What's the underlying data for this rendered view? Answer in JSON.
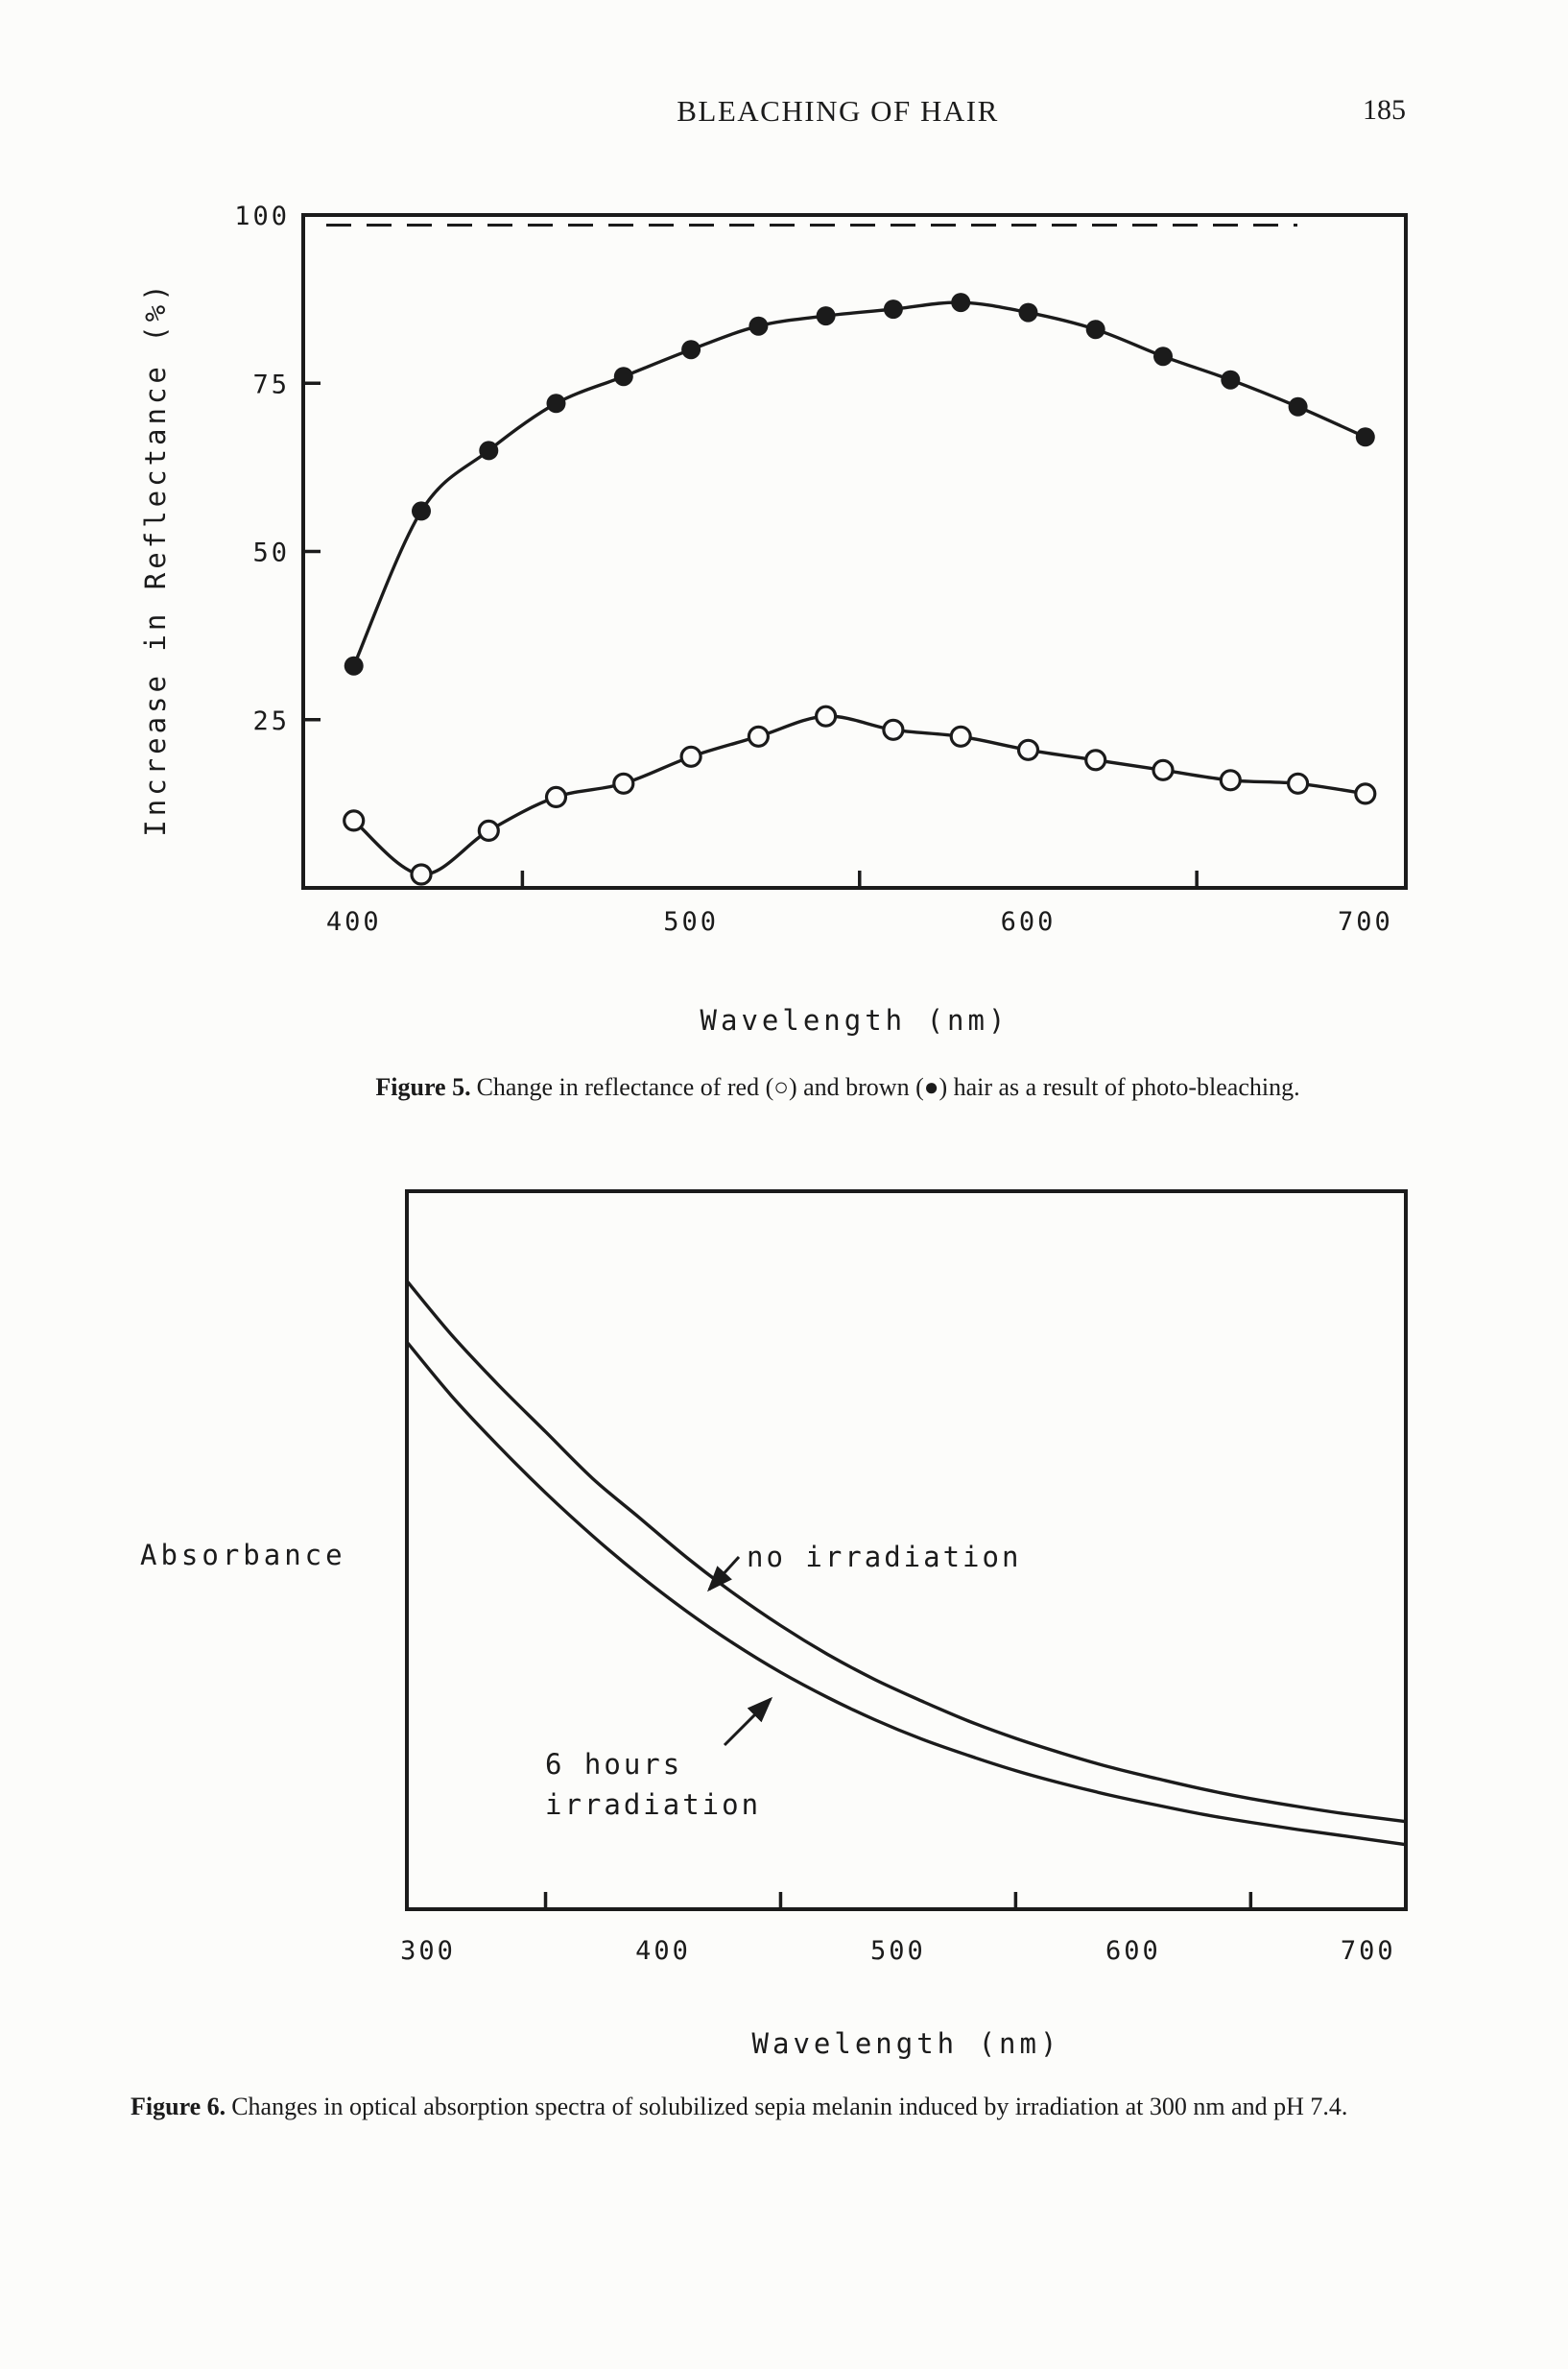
{
  "header": {
    "title": "BLEACHING OF HAIR",
    "page_number": "185"
  },
  "figure5": {
    "caption_label": "Figure 5.",
    "caption_text": "Change in reflectance of red (○) and brown (●) hair as a result of photo-bleaching."
  },
  "figure6": {
    "caption_label": "Figure 6.",
    "caption_text": "Changes in optical absorption spectra of solubilized sepia melanin induced by irradiation at 300 nm and pH 7.4."
  },
  "colors": {
    "ink": "#1b1b1b",
    "paper": "#fcfcfa"
  },
  "chart_data": [
    {
      "type": "scatter",
      "title": "",
      "xlabel": "Wavelength (nm)",
      "ylabel": "Increase in Reflectance (%)",
      "xlim": [
        385,
        712
      ],
      "ylim": [
        0,
        100
      ],
      "x_ticks": [
        400,
        500,
        600,
        700
      ],
      "x_minor_ticks": [
        450,
        550,
        650
      ],
      "y_ticks": [
        25,
        50,
        75,
        100
      ],
      "reference_line_y": 98.5,
      "grid": false,
      "legend": "in caption",
      "series": [
        {
          "name": "brown hair",
          "marker": "filled-circle",
          "x": [
            400,
            420,
            440,
            460,
            480,
            500,
            520,
            540,
            560,
            580,
            600,
            620,
            640,
            660,
            680,
            700
          ],
          "y": [
            33,
            56,
            65,
            72,
            76,
            80,
            83.5,
            85,
            86,
            87,
            85.5,
            83,
            79,
            75.5,
            71.5,
            67
          ]
        },
        {
          "name": "red hair",
          "marker": "open-circle",
          "x": [
            400,
            420,
            440,
            460,
            480,
            500,
            520,
            540,
            560,
            580,
            600,
            620,
            640,
            660,
            680,
            700
          ],
          "y": [
            10,
            2,
            8.5,
            13.5,
            15.5,
            19.5,
            22.5,
            25.5,
            23.5,
            22.5,
            20.5,
            19,
            17.5,
            16,
            15.5,
            14
          ]
        }
      ]
    },
    {
      "type": "line",
      "title": "",
      "xlabel": "Wavelength (nm)",
      "ylabel": "Absorbance",
      "xlim": [
        291,
        716
      ],
      "ylim": [
        0,
        1
      ],
      "x_ticks": [
        300,
        400,
        500,
        600,
        700
      ],
      "x_minor_ticks": [
        350,
        450,
        550,
        650
      ],
      "y_ticks": [],
      "grid": false,
      "series": [
        {
          "name": "no irradiation",
          "marker": "none",
          "x": [
            291,
            310,
            330,
            350,
            370,
            390,
            410,
            430,
            450,
            470,
            490,
            510,
            530,
            550,
            570,
            590,
            610,
            630,
            650,
            670,
            690,
            716
          ],
          "y": [
            0.875,
            0.8,
            0.73,
            0.665,
            0.6,
            0.545,
            0.49,
            0.44,
            0.395,
            0.355,
            0.32,
            0.29,
            0.262,
            0.238,
            0.217,
            0.198,
            0.182,
            0.167,
            0.154,
            0.143,
            0.133,
            0.122
          ]
        },
        {
          "name": "6 hours irradiation",
          "marker": "none",
          "x": [
            291,
            310,
            330,
            350,
            370,
            390,
            410,
            430,
            450,
            470,
            490,
            510,
            530,
            550,
            570,
            590,
            610,
            630,
            650,
            670,
            690,
            716
          ],
          "y": [
            0.79,
            0.715,
            0.645,
            0.58,
            0.52,
            0.465,
            0.415,
            0.37,
            0.33,
            0.295,
            0.264,
            0.237,
            0.214,
            0.193,
            0.175,
            0.159,
            0.145,
            0.132,
            0.121,
            0.111,
            0.102,
            0.09
          ]
        }
      ],
      "annotations": [
        {
          "text": "no irradiation"
        },
        {
          "lines": [
            "6 hours",
            "irradiation"
          ]
        }
      ]
    }
  ]
}
